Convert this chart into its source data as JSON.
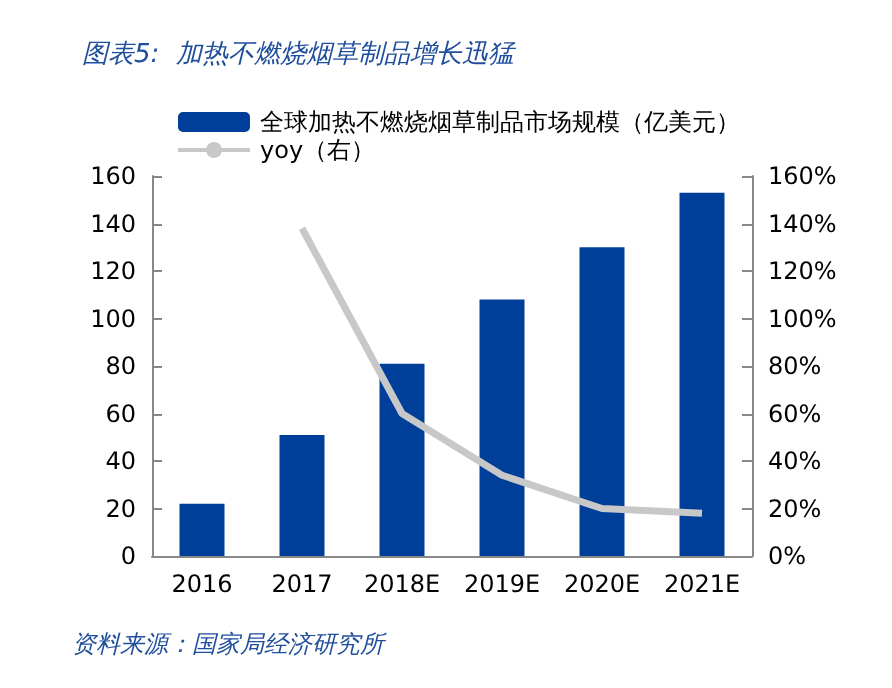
{
  "chart_data": {
    "type": "bar",
    "title": "图表5:  加热不燃烧烟草制品增长迅猛",
    "categories": [
      "2016",
      "2017",
      "2018E",
      "2019E",
      "2020E",
      "2021E"
    ],
    "series": [
      {
        "name": "全球加热不燃烧烟草制品市场规模（亿美元）",
        "color": "#003f99",
        "values": [
          22,
          51,
          81,
          108,
          130,
          153
        ]
      },
      {
        "name": "yoy（右）",
        "type": "line",
        "axis": "y2",
        "color": "#c8c8c8",
        "values": [
          null,
          138,
          60,
          34,
          20,
          18
        ]
      }
    ],
    "ylim": [
      0,
      160
    ],
    "yticks": [
      0,
      20,
      40,
      60,
      80,
      100,
      120,
      140,
      160
    ],
    "y2lim": [
      0,
      160
    ],
    "y2ticks": [
      {
        "value": 0,
        "label": "0%"
      },
      {
        "value": 20,
        "label": "20%"
      },
      {
        "value": 40,
        "label": "40%"
      },
      {
        "value": 60,
        "label": "60%"
      },
      {
        "value": 80,
        "label": "80%"
      },
      {
        "value": 100,
        "label": "100%"
      },
      {
        "value": 120,
        "label": "120%"
      },
      {
        "value": 140,
        "label": "140%"
      },
      {
        "value": 160,
        "label": "160%"
      }
    ],
    "grid": false,
    "legend": "top left",
    "marker": "none",
    "annotations": [
      "资料来源：国家局经济研究所"
    ]
  }
}
